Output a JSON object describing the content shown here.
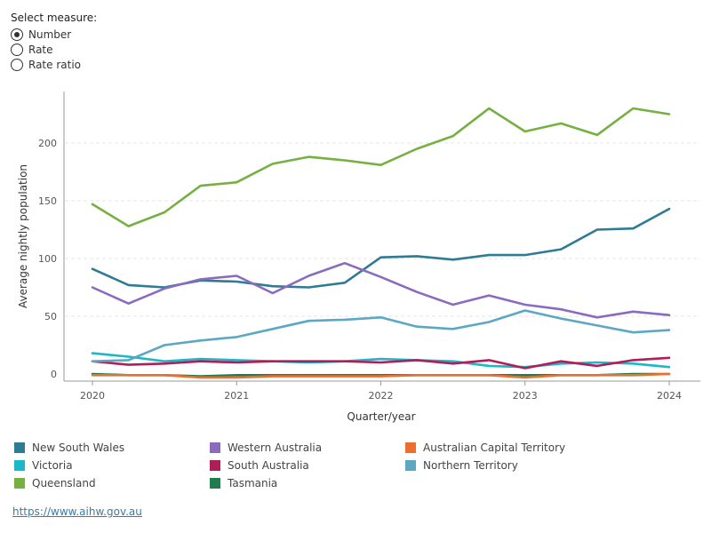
{
  "measure_selector": {
    "title": "Select measure:",
    "options": [
      {
        "label": "Number",
        "selected": true
      },
      {
        "label": "Rate",
        "selected": false
      },
      {
        "label": "Rate ratio",
        "selected": false
      }
    ]
  },
  "source_link": "https://www.aihw.gov.au",
  "chart_data": {
    "type": "line",
    "title": "",
    "xlabel": "Quarter/year",
    "ylabel": "Average nightly population",
    "ylim": [
      0,
      240
    ],
    "xlim": [
      2020,
      2024
    ],
    "yticks": [
      0,
      50,
      100,
      150,
      200
    ],
    "xticks": [
      2020,
      2021,
      2022,
      2023,
      2024
    ],
    "grid": "horizontal dashed",
    "legend_position": "bottom",
    "x": [
      2020.0,
      2020.25,
      2020.5,
      2020.75,
      2021.0,
      2021.25,
      2021.5,
      2021.75,
      2022.0,
      2022.25,
      2022.5,
      2022.75,
      2023.0,
      2023.25,
      2023.5,
      2023.75,
      2024.0
    ],
    "series": [
      {
        "name": "New South Wales",
        "color": "#2e7b93",
        "values": [
          91,
          77,
          75,
          81,
          80,
          76,
          75,
          79,
          101,
          102,
          99,
          103,
          103,
          108,
          125,
          126,
          143
        ]
      },
      {
        "name": "Victoria",
        "color": "#1ab8c8",
        "values": [
          18,
          15,
          11,
          13,
          12,
          11,
          10,
          11,
          13,
          12,
          11,
          7,
          6,
          9,
          10,
          9,
          6
        ]
      },
      {
        "name": "Queensland",
        "color": "#76b041",
        "values": [
          147,
          128,
          140,
          163,
          166,
          182,
          188,
          185,
          181,
          195,
          206,
          230,
          210,
          217,
          207,
          230,
          225
        ]
      },
      {
        "name": "Western Australia",
        "color": "#8a6bbe",
        "values": [
          75,
          61,
          74,
          82,
          85,
          70,
          85,
          96,
          84,
          71,
          60,
          68,
          60,
          56,
          49,
          54,
          51
        ]
      },
      {
        "name": "South Australia",
        "color": "#b01e5a",
        "values": [
          11,
          8,
          9,
          11,
          10,
          11,
          11,
          11,
          10,
          12,
          9,
          12,
          5,
          11,
          7,
          12,
          14
        ]
      },
      {
        "name": "Tasmania",
        "color": "#1e7d4b",
        "values": [
          0,
          -1,
          -1,
          -2,
          -1,
          -1,
          -1,
          -1,
          -1,
          -1,
          -1,
          -1,
          -1,
          -1,
          -1,
          0,
          0
        ]
      },
      {
        "name": "Australian Capital Territory",
        "color": "#ee6f2d",
        "values": [
          -1,
          -1,
          -1,
          -3,
          -3,
          -2,
          -2,
          -2,
          -2,
          -1,
          -1,
          -1,
          -3,
          -1,
          -1,
          -1,
          0
        ]
      },
      {
        "name": "Northern Territory",
        "color": "#5ba8c4",
        "values": [
          11,
          12,
          25,
          29,
          32,
          39,
          46,
          47,
          49,
          41,
          39,
          45,
          55,
          48,
          42,
          36,
          38
        ]
      }
    ]
  }
}
